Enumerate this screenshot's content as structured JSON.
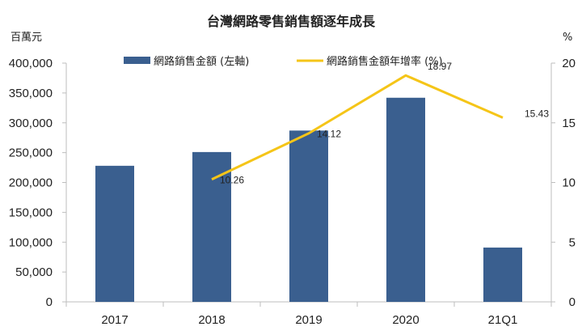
{
  "chart_data": {
    "type": "bar",
    "title": "台灣網路零售銷售額逐年成長",
    "left_unit": "百萬元",
    "right_unit": "%",
    "categories": [
      "2017",
      "2018",
      "2019",
      "2020",
      "21Q1"
    ],
    "series": [
      {
        "name": "網路銷售金額 (左軸)",
        "type": "bar",
        "axis": "left",
        "values": [
          228000,
          251000,
          287000,
          342000,
          91000
        ],
        "color": "#3a5f8f"
      },
      {
        "name": "網路銷售金額年增率 (%)",
        "type": "line",
        "axis": "right",
        "values": [
          null,
          10.26,
          14.12,
          18.97,
          15.43
        ],
        "labels": [
          "",
          "10.26",
          "14.12",
          "18.97",
          "15.43"
        ],
        "color": "#f5c518"
      }
    ],
    "left_axis": {
      "min": 0,
      "max": 400000,
      "ticks": [
        "0",
        "50,000",
        "100,000",
        "150,000",
        "200,000",
        "250,000",
        "300,000",
        "350,000",
        "400,000"
      ]
    },
    "right_axis": {
      "min": 0,
      "max": 20,
      "ticks": [
        "0",
        "5",
        "10",
        "15",
        "20"
      ]
    },
    "grid": false,
    "legend_position": "top"
  }
}
